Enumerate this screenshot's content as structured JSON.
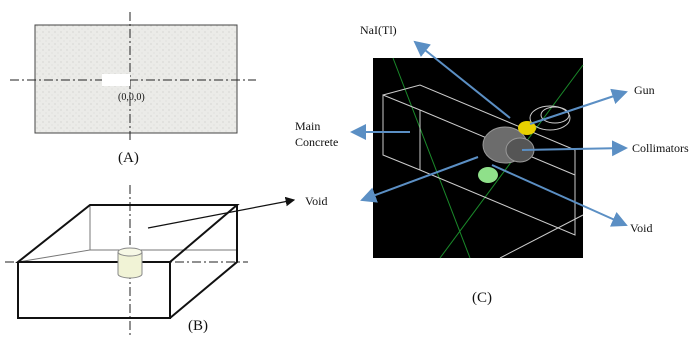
{
  "panel_a": {
    "origin_label": "(0,0,0)",
    "caption": "(A)"
  },
  "panel_b": {
    "caption": "(B)",
    "void_label": "Void"
  },
  "panel_c": {
    "caption": "(C)",
    "nai_label": "NaI(Tl)",
    "gun_label": "Gun",
    "concrete_label": [
      "Main",
      "Concrete"
    ],
    "collimators_label": "Collimators",
    "void_label": "Void"
  }
}
